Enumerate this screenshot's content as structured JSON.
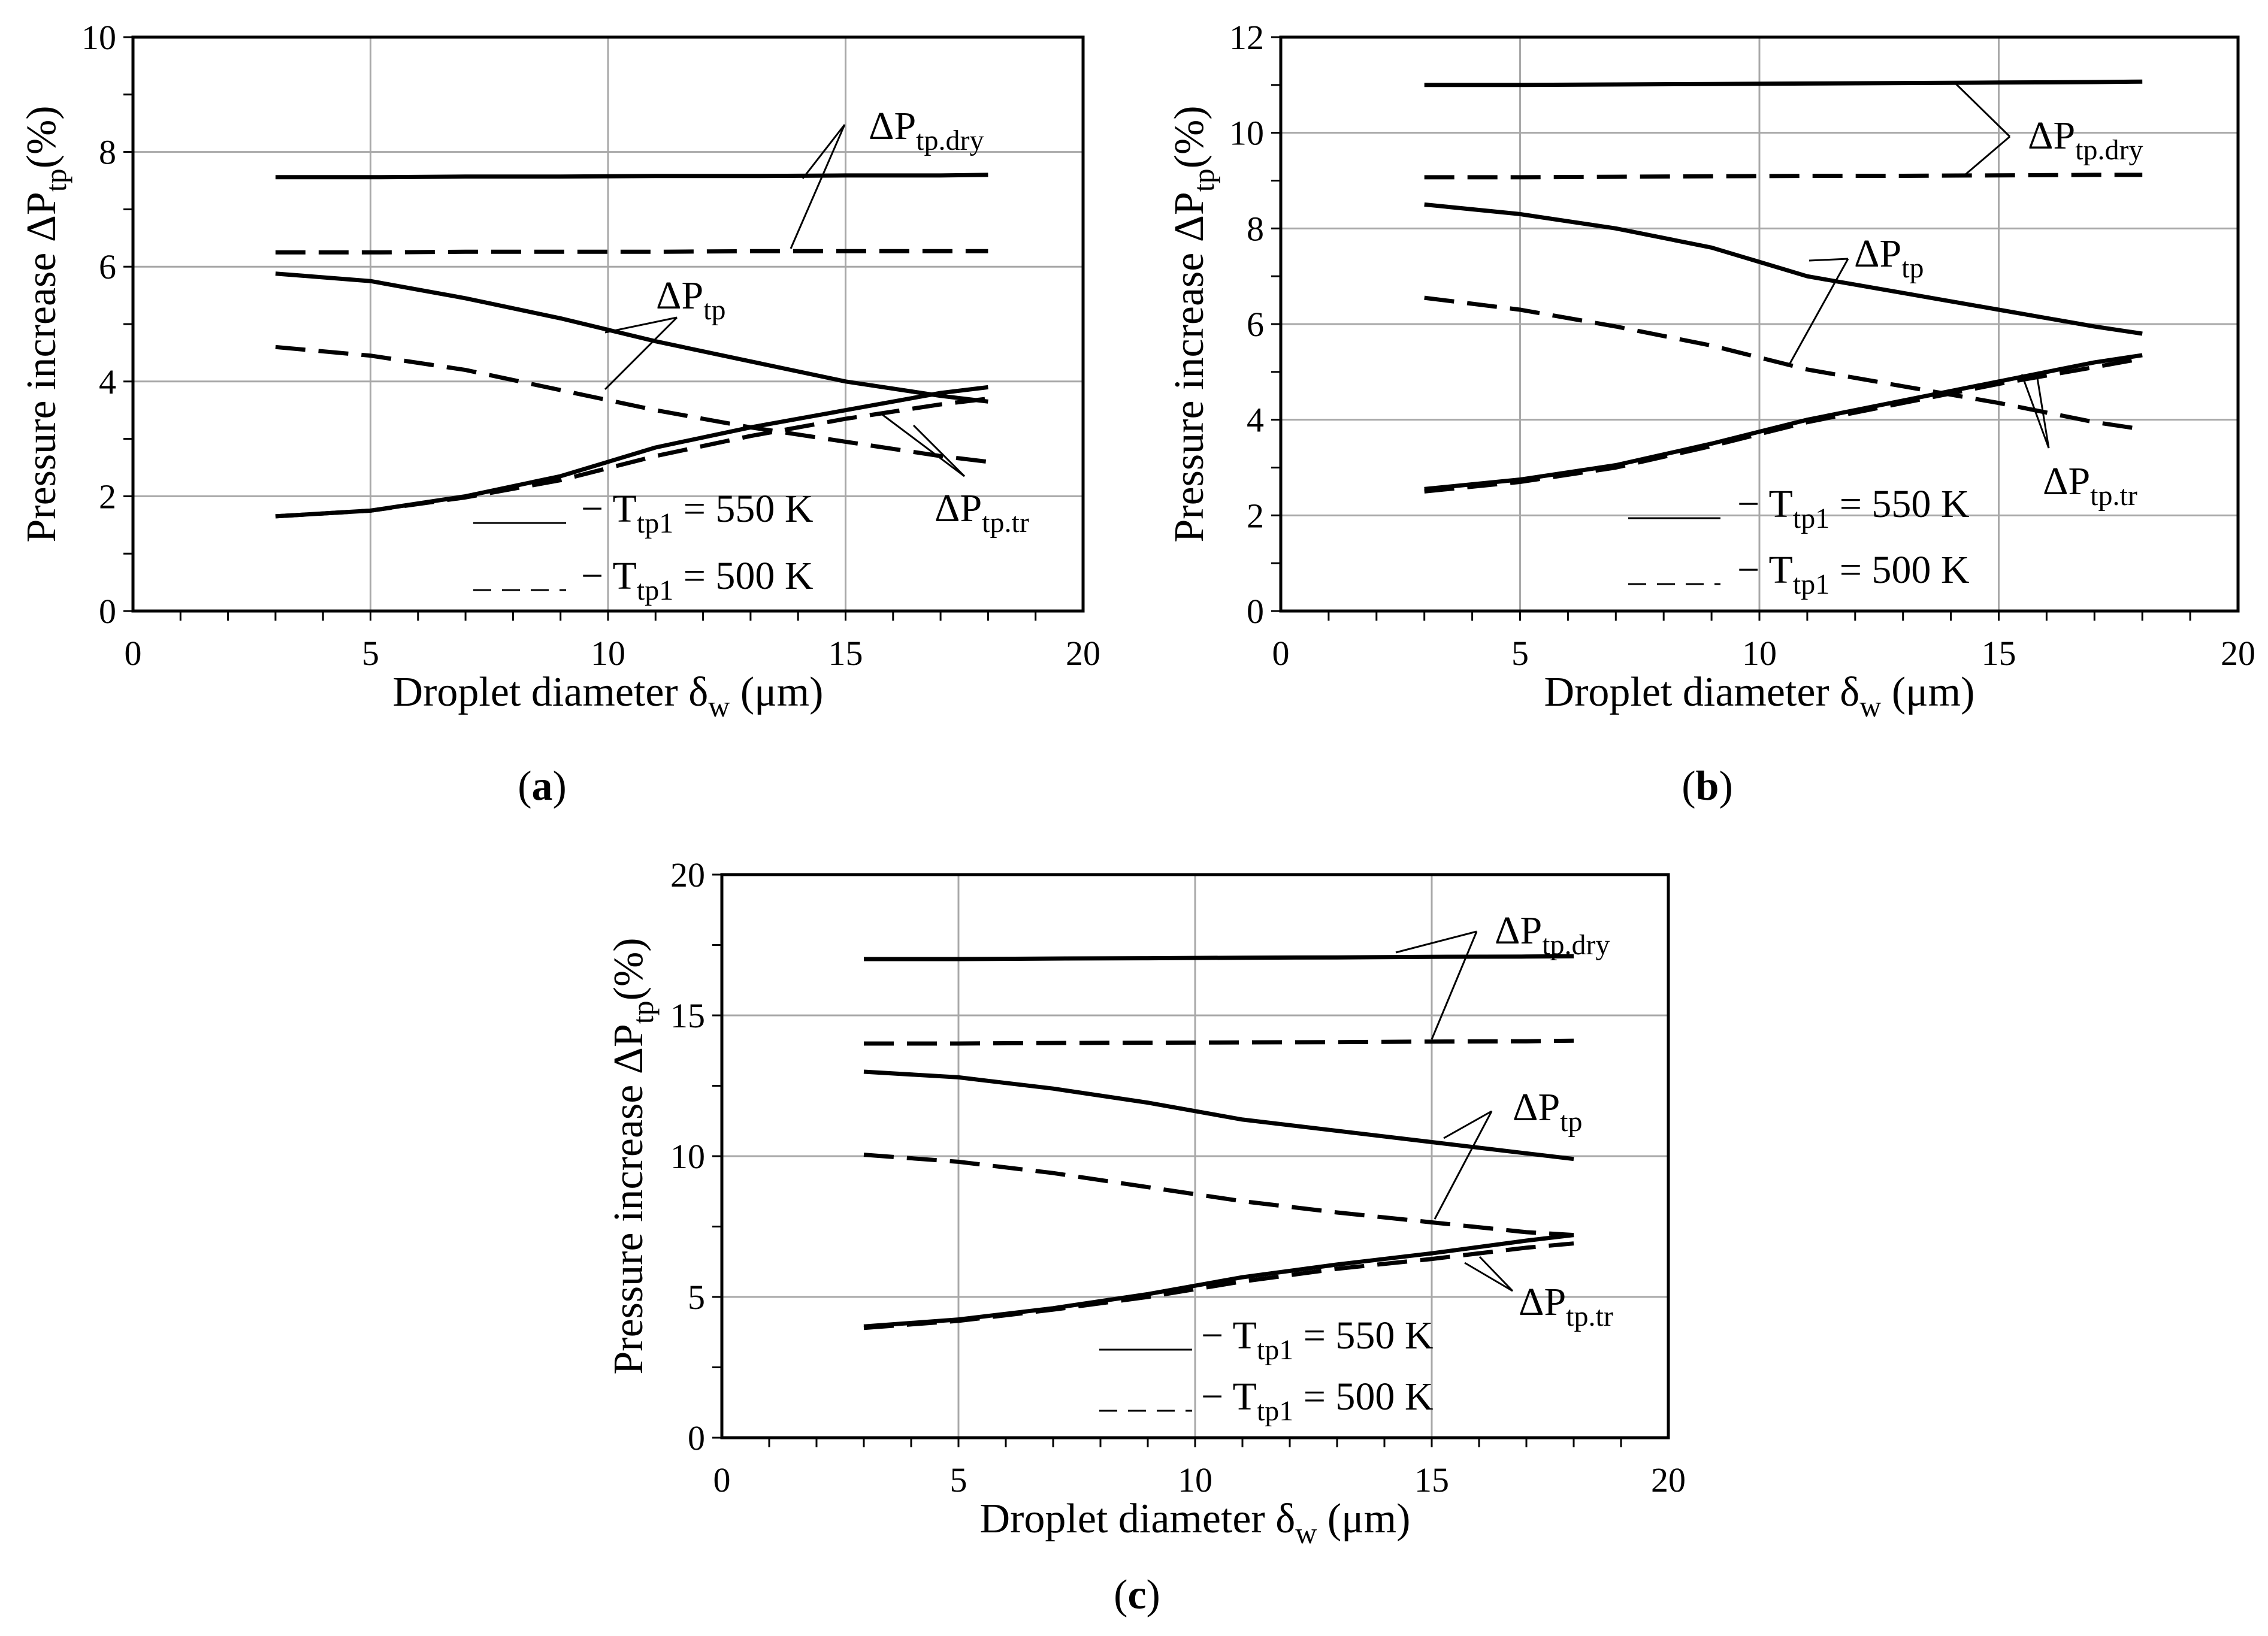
{
  "chart_data": [
    {
      "id": "a",
      "type": "line",
      "label": "a",
      "xlabel": "Droplet diameter δ",
      "xlabel_sub": "w",
      "xlabel_unit": "(μm)",
      "ylabel": "Pressure increase ΔP",
      "ylabel_sub": "tp",
      "ylabel_unit": "(%)",
      "xlim": [
        0,
        20
      ],
      "ylim": [
        0,
        10
      ],
      "xticks": [
        "0",
        "5",
        "10",
        "15",
        "20"
      ],
      "yticks": [
        "0",
        "2",
        "4",
        "6",
        "8",
        "10"
      ],
      "grid": true,
      "x": [
        3,
        5,
        7,
        9,
        11,
        13,
        15,
        17,
        18
      ],
      "series": [
        {
          "name": "ΔPtp.dry, Ttp1 = 550 K",
          "style": "solid",
          "values": [
            7.56,
            7.56,
            7.57,
            7.57,
            7.58,
            7.58,
            7.59,
            7.59,
            7.6
          ]
        },
        {
          "name": "ΔPtp.dry, Ttp1 = 500 K",
          "style": "dashed",
          "values": [
            6.25,
            6.25,
            6.26,
            6.26,
            6.26,
            6.27,
            6.27,
            6.27,
            6.27
          ]
        },
        {
          "name": "ΔPtp, Ttp1 = 550 K",
          "style": "solid",
          "values": [
            5.88,
            5.75,
            5.45,
            5.1,
            4.7,
            4.35,
            4.0,
            3.75,
            3.65
          ]
        },
        {
          "name": "ΔPtp, Ttp1 = 500 K",
          "style": "dashed",
          "values": [
            4.6,
            4.45,
            4.2,
            3.85,
            3.5,
            3.2,
            2.95,
            2.7,
            2.6
          ]
        },
        {
          "name": "ΔPtp.tr, Ttp1 = 550 K",
          "style": "solid",
          "values": [
            1.65,
            1.75,
            2.0,
            2.35,
            2.85,
            3.2,
            3.5,
            3.8,
            3.9
          ]
        },
        {
          "name": "ΔPtp.tr, Ttp1 = 500 K",
          "style": "dashed",
          "values": [
            1.65,
            1.75,
            1.98,
            2.28,
            2.7,
            3.05,
            3.35,
            3.6,
            3.7
          ]
        }
      ],
      "annotations": [
        {
          "base": "ΔP",
          "sub": "tp.dry"
        },
        {
          "base": "ΔP",
          "sub": "tp"
        },
        {
          "base": "ΔP",
          "sub": "tp.tr"
        }
      ],
      "legend": [
        {
          "prefix": "− T",
          "sub": "tp1",
          "suffix": " = 550 K",
          "style": "solid"
        },
        {
          "prefix": "− T",
          "sub": "tp1",
          "suffix": " = 500 K",
          "style": "dashed"
        }
      ]
    },
    {
      "id": "b",
      "type": "line",
      "label": "b",
      "xlabel": "Droplet diameter δ",
      "xlabel_sub": "w",
      "xlabel_unit": "(μm)",
      "ylabel": "Pressure increase ΔP",
      "ylabel_sub": "tp",
      "ylabel_unit": "(%)",
      "xlim": [
        0,
        20
      ],
      "ylim": [
        0,
        12
      ],
      "xticks": [
        "0",
        "5",
        "10",
        "15",
        "20"
      ],
      "yticks": [
        "0",
        "2",
        "4",
        "6",
        "8",
        "10",
        "12"
      ],
      "grid": true,
      "x": [
        3,
        5,
        7,
        9,
        11,
        13,
        15,
        17,
        18
      ],
      "series": [
        {
          "name": "ΔPtp.dry, Ttp1 = 550 K",
          "style": "solid",
          "values": [
            11.0,
            11.0,
            11.01,
            11.02,
            11.03,
            11.04,
            11.05,
            11.06,
            11.07
          ]
        },
        {
          "name": "ΔPtp.dry, Ttp1 = 500 K",
          "style": "dashed",
          "values": [
            9.07,
            9.07,
            9.08,
            9.09,
            9.1,
            9.1,
            9.11,
            9.12,
            9.12
          ]
        },
        {
          "name": "ΔPtp, Ttp1 = 550 K",
          "style": "solid",
          "values": [
            8.5,
            8.3,
            8.0,
            7.6,
            7.0,
            6.65,
            6.3,
            5.95,
            5.8
          ]
        },
        {
          "name": "ΔPtp, Ttp1 = 500 K",
          "style": "dashed",
          "values": [
            6.55,
            6.3,
            5.95,
            5.55,
            5.05,
            4.7,
            4.35,
            3.95,
            3.8
          ]
        },
        {
          "name": "ΔPtp.tr, Ttp1 = 550 K",
          "style": "solid",
          "values": [
            2.55,
            2.75,
            3.05,
            3.5,
            4.0,
            4.4,
            4.8,
            5.2,
            5.35
          ]
        },
        {
          "name": "ΔPtp.tr, Ttp1 = 500 K",
          "style": "dashed",
          "values": [
            2.5,
            2.7,
            3.0,
            3.45,
            3.95,
            4.35,
            4.75,
            5.1,
            5.28
          ]
        }
      ],
      "annotations": [
        {
          "base": "ΔP",
          "sub": "tp.dry"
        },
        {
          "base": "ΔP",
          "sub": "tp"
        },
        {
          "base": "ΔP",
          "sub": "tp.tr"
        }
      ],
      "legend": [
        {
          "prefix": "− T",
          "sub": "tp1",
          "suffix": " = 550 K",
          "style": "solid"
        },
        {
          "prefix": "− T",
          "sub": "tp1",
          "suffix": " = 500 K",
          "style": "dashed"
        }
      ]
    },
    {
      "id": "c",
      "type": "line",
      "label": "c",
      "xlabel": "Droplet diameter δ",
      "xlabel_sub": "w",
      "xlabel_unit": "(μm)",
      "ylabel": "Pressure increase ΔP",
      "ylabel_sub": "tp",
      "ylabel_unit": "(%)",
      "xlim": [
        0,
        20
      ],
      "ylim": [
        0,
        20
      ],
      "xticks": [
        "0",
        "5",
        "10",
        "15",
        "20"
      ],
      "yticks": [
        "0",
        "5",
        "10",
        "15",
        "20"
      ],
      "grid": true,
      "x": [
        3,
        5,
        7,
        9,
        11,
        13,
        15,
        17,
        18
      ],
      "series": [
        {
          "name": "ΔPtp.dry, Ttp1 = 550 K",
          "style": "solid",
          "values": [
            17.0,
            17.0,
            17.02,
            17.03,
            17.05,
            17.06,
            17.08,
            17.09,
            17.1
          ]
        },
        {
          "name": "ΔPtp.dry, Ttp1 = 500 K",
          "style": "dashed",
          "values": [
            14.0,
            14.0,
            14.02,
            14.03,
            14.04,
            14.05,
            14.07,
            14.08,
            14.1
          ]
        },
        {
          "name": "ΔPtp, Ttp1 = 550 K",
          "style": "solid",
          "values": [
            13.0,
            12.8,
            12.4,
            11.9,
            11.3,
            10.9,
            10.5,
            10.1,
            9.9
          ]
        },
        {
          "name": "ΔPtp, Ttp1 = 500 K",
          "style": "dashed",
          "values": [
            10.05,
            9.8,
            9.4,
            8.9,
            8.4,
            8.0,
            7.65,
            7.3,
            7.2
          ]
        },
        {
          "name": "ΔPtp.tr, Ttp1 = 550 K",
          "style": "solid",
          "values": [
            3.95,
            4.2,
            4.6,
            5.1,
            5.7,
            6.15,
            6.55,
            7.0,
            7.2
          ]
        },
        {
          "name": "ΔPtp.tr, Ttp1 = 500 K",
          "style": "dashed",
          "values": [
            3.9,
            4.15,
            4.55,
            5.0,
            5.55,
            6.0,
            6.35,
            6.75,
            6.9
          ]
        }
      ],
      "annotations": [
        {
          "base": "ΔP",
          "sub": "tp.dry"
        },
        {
          "base": "ΔP",
          "sub": "tp"
        },
        {
          "base": "ΔP",
          "sub": "tp.tr"
        }
      ],
      "legend": [
        {
          "prefix": "− T",
          "sub": "tp1",
          "suffix": " = 550 K",
          "style": "solid"
        },
        {
          "prefix": "− T",
          "sub": "tp1",
          "suffix": " = 500 K",
          "style": "dashed"
        }
      ]
    }
  ]
}
